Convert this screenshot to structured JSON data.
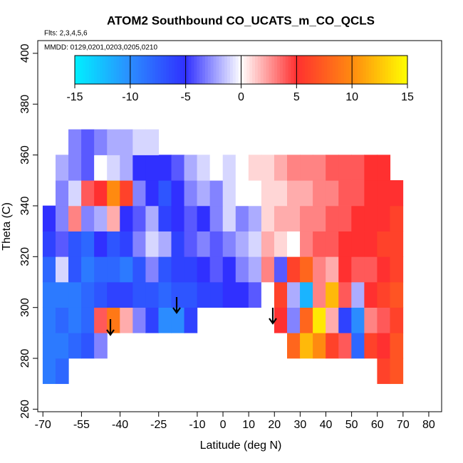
{
  "chart_data": {
    "type": "heatmap",
    "title": "ATOM2 Southbound CO_UCATS_m_CO_QCLS",
    "subtitle": "Flts: 2,3,4,5,6",
    "annotation": "MMDD: 0129,0201,0203,0205,0210",
    "x_label": "Latitude (deg N)",
    "y_label": "Theta (C)",
    "xlim": [
      -72,
      85
    ],
    "ylim": [
      259,
      405
    ],
    "xticks": [
      -70,
      -55,
      -40,
      -25,
      -10,
      0,
      10,
      20,
      30,
      40,
      50,
      60,
      70,
      80
    ],
    "yticks": [
      260,
      280,
      300,
      320,
      340,
      360,
      380,
      400
    ],
    "x": [
      -70,
      -65,
      -60,
      -55,
      -50,
      -45,
      -40,
      -35,
      -30,
      -25,
      -20,
      -15,
      -10,
      -5,
      0,
      5,
      10,
      15,
      20,
      25,
      30,
      35,
      40,
      45,
      50,
      55,
      60,
      65,
      70
    ],
    "y": [
      270,
      280,
      290,
      300,
      310,
      320,
      330,
      340,
      350,
      360,
      370
    ],
    "values": [
      [
        -9,
        -8,
        null,
        null,
        null,
        null,
        null,
        null,
        null,
        null,
        null,
        null,
        null,
        null,
        null,
        null,
        null,
        null,
        null,
        null,
        null,
        null,
        null,
        null,
        null,
        null,
        6,
        7
      ],
      [
        -9,
        -9,
        -8,
        -7,
        -3,
        null,
        null,
        null,
        null,
        null,
        null,
        null,
        null,
        null,
        null,
        null,
        null,
        null,
        null,
        8,
        12,
        10,
        6,
        4,
        -8,
        6,
        5,
        7
      ],
      [
        -9,
        -8,
        -9,
        -8,
        4,
        9,
        2,
        -3,
        -6,
        -10,
        -10,
        -6,
        null,
        null,
        null,
        null,
        null,
        null,
        5,
        -3,
        8,
        14,
        2,
        -6,
        -10,
        3,
        4,
        6
      ],
      [
        -9,
        -9,
        -9,
        -8,
        -7,
        -6,
        -6,
        -7,
        -7,
        -8,
        -7,
        -7,
        -6,
        -6,
        -5,
        -5,
        -4,
        0,
        6,
        -2,
        -12,
        3,
        12,
        4,
        -2,
        5,
        6,
        7
      ],
      [
        -8,
        -1,
        -7,
        -9,
        -8,
        -8,
        -9,
        -7,
        -3,
        -7,
        -6,
        -6,
        -5,
        -4,
        -5,
        -3,
        -2,
        3,
        -4,
        6,
        8,
        3,
        2,
        5,
        4,
        4,
        5,
        6
      ],
      [
        -6,
        -4,
        -7,
        -8,
        -5,
        -7,
        -6,
        -3,
        -1,
        -2,
        -6,
        -4,
        -3,
        -4,
        -3,
        -2,
        -1,
        2,
        1,
        0,
        3,
        4,
        4,
        5,
        5,
        5,
        6,
        6
      ],
      [
        -5,
        -3,
        3,
        -3,
        -2,
        2,
        -5,
        -4,
        -2,
        -6,
        -5,
        -4,
        -5,
        -3,
        -1,
        -3,
        -2,
        1,
        2,
        2,
        3,
        3,
        4,
        4,
        5,
        5,
        5,
        6
      ],
      [
        null,
        -3,
        -1,
        4,
        5,
        10,
        6,
        -3,
        -5,
        -7,
        -5,
        -3,
        -2,
        -3,
        -1,
        0,
        0,
        1,
        1,
        2,
        2,
        3,
        3,
        4,
        4,
        5,
        5,
        5
      ],
      [
        null,
        -2,
        -3,
        -4,
        0,
        -1,
        -2,
        -5,
        -5,
        -5,
        -4,
        -2,
        -1,
        0,
        -1,
        0,
        1,
        1,
        2,
        3,
        3,
        3,
        4,
        4,
        4,
        5,
        5,
        null
      ],
      [
        null,
        null,
        -3,
        -4,
        -3,
        -2,
        -2,
        -1,
        -1,
        null,
        null,
        null,
        null,
        null,
        null,
        null,
        null,
        null,
        null,
        null,
        null,
        null,
        null,
        null,
        null,
        null,
        null,
        null
      ]
    ],
    "colorbar": {
      "lim": [
        -15,
        15
      ],
      "ticks": [
        -15,
        -10,
        -5,
        0,
        5,
        10,
        15
      ],
      "colors": [
        "#00f0ff",
        "#2b8cff",
        "#3030ff",
        "#ffffff",
        "#ff3030",
        "#ff8a10",
        "#ffff00"
      ]
    }
  }
}
